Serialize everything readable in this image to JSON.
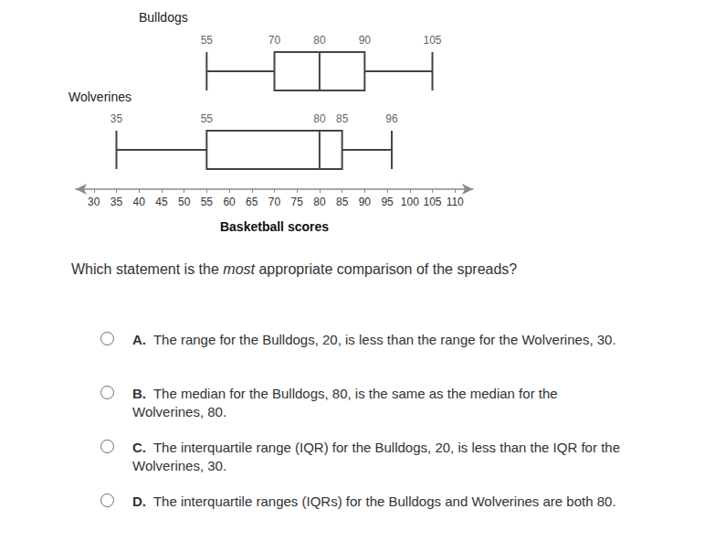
{
  "chart_data": {
    "type": "boxplot",
    "categories": [
      "Bulldogs",
      "Wolverines"
    ],
    "values": [
      [
        55,
        70,
        80,
        90,
        105
      ],
      [
        35,
        55,
        80,
        85,
        96
      ]
    ],
    "xlabel": "Basketball scores",
    "xlim": [
      26,
      114
    ],
    "xticks": [
      30,
      35,
      40,
      45,
      50,
      55,
      60,
      65,
      70,
      75,
      80,
      85,
      90,
      95,
      100,
      105,
      110
    ],
    "orientation": "horizontal",
    "data_labels": true,
    "grid": false,
    "color": "#444444"
  },
  "question": {
    "before": "Which statement is the ",
    "emphasis": "most",
    "after": " appropriate comparison of the spreads?"
  },
  "options": [
    {
      "letter": "A.",
      "text": "The range for the Bulldogs, 20, is less than the range for the Wolverines, 30."
    },
    {
      "letter": "B.",
      "text": "The median for the Bulldogs, 80, is the same as the median for the Wolverines, 80."
    },
    {
      "letter": "C.",
      "text": "The interquartile range (IQR) for the Bulldogs, 20, is less than the IQR for the Wolverines, 30."
    },
    {
      "letter": "D.",
      "text": "The interquartile ranges (IQRs) for the Bulldogs and Wolverines are both 80."
    }
  ]
}
